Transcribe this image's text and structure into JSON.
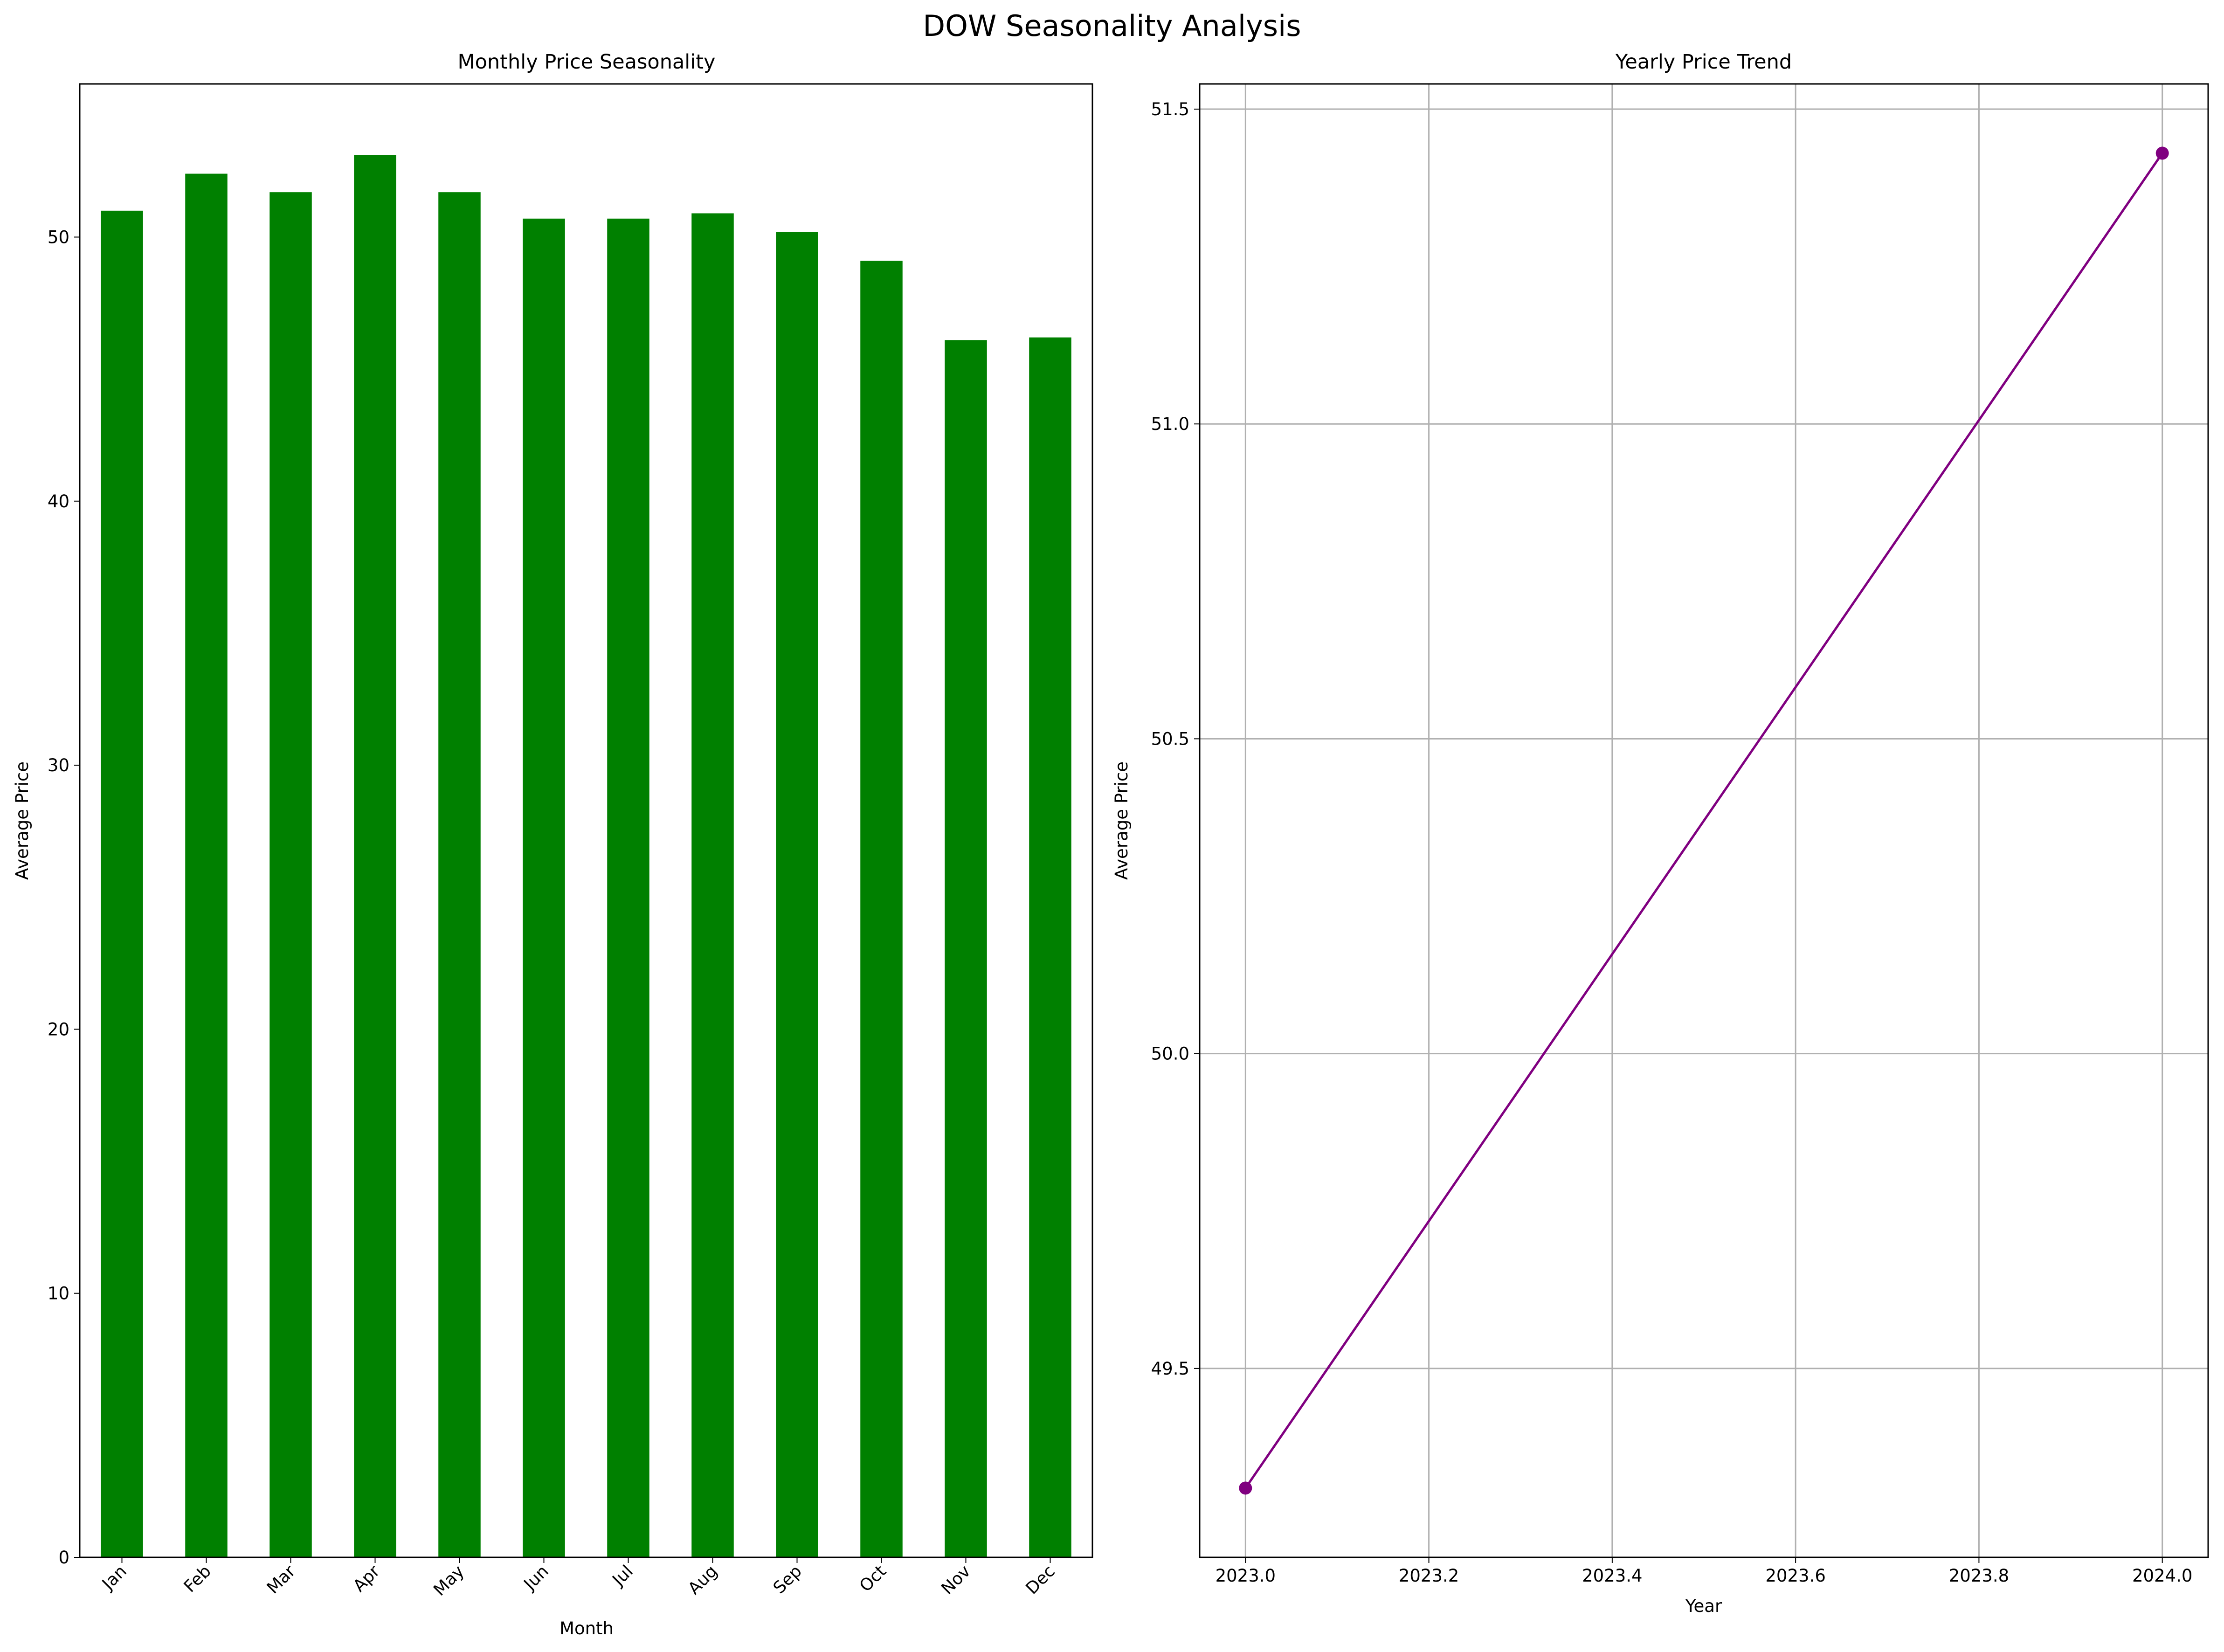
{
  "figure": {
    "title": "DOW Seasonality Analysis"
  },
  "chart_data": [
    {
      "type": "bar",
      "title": "Monthly Price Seasonality",
      "xlabel": "Month",
      "ylabel": "Average Price",
      "categories": [
        "Jan",
        "Feb",
        "Mar",
        "Apr",
        "May",
        "Jun",
        "Jul",
        "Aug",
        "Sep",
        "Oct",
        "Nov",
        "Dec"
      ],
      "values": [
        51.0,
        52.4,
        51.7,
        53.1,
        51.7,
        50.7,
        50.7,
        50.9,
        50.2,
        49.1,
        46.1,
        46.2
      ],
      "ylim": [
        0,
        55.8
      ],
      "yticks": [
        0,
        10,
        20,
        30,
        40,
        50
      ],
      "ytick_labels": [
        "0",
        "10",
        "20",
        "30",
        "40",
        "50"
      ],
      "grid": false,
      "color": "#008000"
    },
    {
      "type": "line",
      "title": "Yearly Price Trend",
      "xlabel": "Year",
      "ylabel": "Average Price",
      "x": [
        2023.0,
        2024.0
      ],
      "y": [
        49.31,
        51.43
      ],
      "xlim": [
        2022.95,
        2024.05
      ],
      "ylim": [
        49.2,
        51.54
      ],
      "xticks": [
        2023.0,
        2023.2,
        2023.4,
        2023.6,
        2023.8,
        2024.0
      ],
      "xtick_labels": [
        "2023.0",
        "2023.2",
        "2023.4",
        "2023.6",
        "2023.8",
        "2024.0"
      ],
      "yticks": [
        49.5,
        50.0,
        50.5,
        51.0,
        51.5
      ],
      "ytick_labels": [
        "49.5",
        "50.0",
        "50.5",
        "51.0",
        "51.5"
      ],
      "grid": true,
      "marker": "circle",
      "color": "#800080"
    }
  ]
}
